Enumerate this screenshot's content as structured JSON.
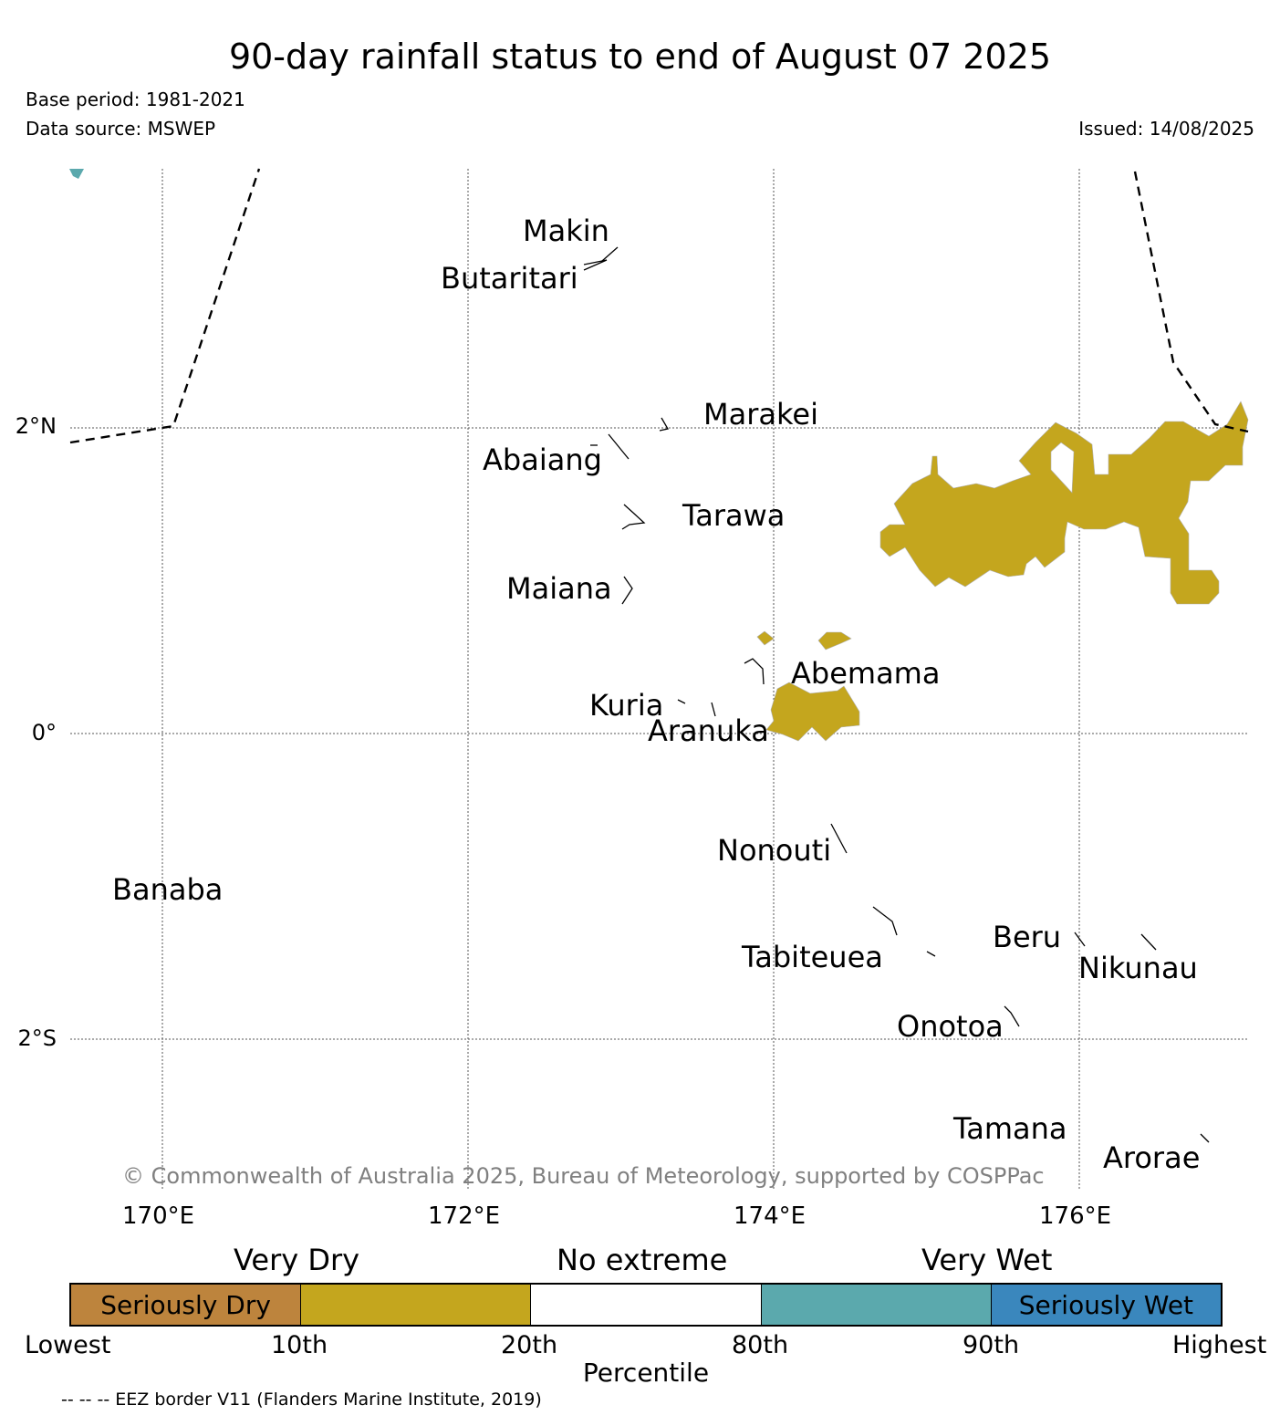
{
  "title": "90-day rainfall status to end of August 07 2025",
  "base_period": "Base period: 1981-2021",
  "data_source": "Data source: MSWEP",
  "issued": "Issued: 14/08/2025",
  "map": {
    "lat_labels": [
      "2°N",
      "0°",
      "2°S"
    ],
    "lon_labels": [
      "170°E",
      "172°E",
      "174°E",
      "176°E"
    ],
    "places": [
      "Makin",
      "Butaritari",
      "Marakei",
      "Abaiang",
      "Tarawa",
      "Maiana",
      "Abemama",
      "Kuria",
      "Aranuka",
      "Nonouti",
      "Banaba",
      "Beru",
      "Tabiteuea",
      "Nikunau",
      "Onotoa",
      "Tamana",
      "Arorae"
    ],
    "copyright": "© Commonwealth of Australia 2025, Bureau of Meteorology, supported by COSPPac"
  },
  "legend": {
    "categories": [
      "Very Dry",
      "No extreme",
      "Very Wet"
    ],
    "segments": [
      {
        "label": "Seriously Dry",
        "color": "#bd843d"
      },
      {
        "label": "",
        "color": "#c4a61e"
      },
      {
        "label": "",
        "color": "#ffffff"
      },
      {
        "label": "",
        "color": "#5ba9ad"
      },
      {
        "label": "Seriously Wet",
        "color": "#3a87bd"
      }
    ],
    "ticks": [
      "Lowest",
      "10th",
      "20th",
      "80th",
      "90th",
      "Highest"
    ],
    "axis_label": "Percentile"
  },
  "eez_note": "-- -- -- EEZ border V11 (Flanders Marine Institute, 2019)"
}
